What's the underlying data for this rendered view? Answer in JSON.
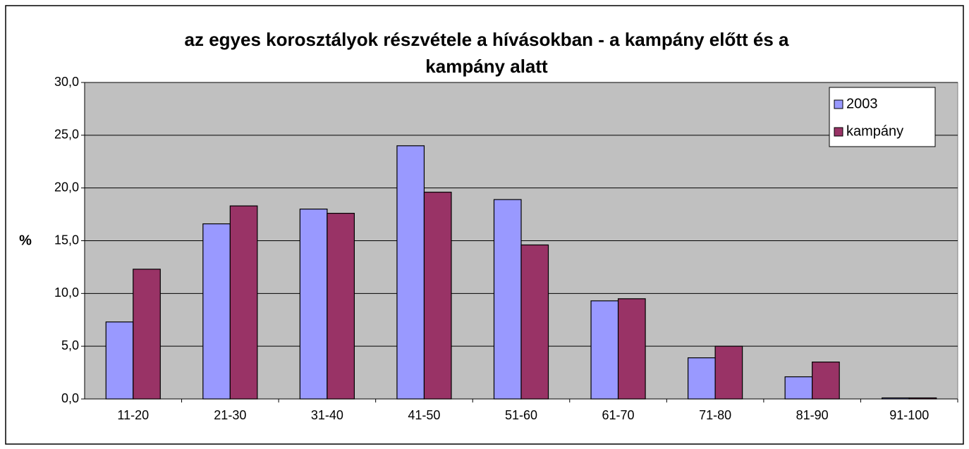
{
  "chart_data": {
    "type": "bar",
    "title": "az egyes korosztályok részvétele a hívásokban - a kampány előtt és a kampány alatt",
    "ylabel": "%",
    "categories": [
      "11-20",
      "21-30",
      "31-40",
      "41-50",
      "51-60",
      "61-70",
      "71-80",
      "81-90",
      "91-100"
    ],
    "series": [
      {
        "name": "2003",
        "color": "#9999ff",
        "values": [
          7.3,
          16.6,
          18.0,
          24.0,
          18.9,
          9.3,
          3.9,
          2.1,
          0.1
        ]
      },
      {
        "name": "kampány",
        "color": "#993366",
        "values": [
          12.3,
          18.3,
          17.6,
          19.6,
          14.6,
          9.5,
          5.0,
          3.5,
          0.1
        ]
      }
    ],
    "ylim": [
      0,
      30
    ],
    "yticks": [
      {
        "value": 0,
        "label": "0,0"
      },
      {
        "value": 5,
        "label": "5,0"
      },
      {
        "value": 10,
        "label": "10,0"
      },
      {
        "value": 15,
        "label": "15,0"
      },
      {
        "value": 20,
        "label": "20,0"
      },
      {
        "value": 25,
        "label": "25,0"
      },
      {
        "value": 30,
        "label": "30,0"
      }
    ],
    "grid": true,
    "legend": "top-right",
    "plot_background": "#c0c0c0"
  }
}
